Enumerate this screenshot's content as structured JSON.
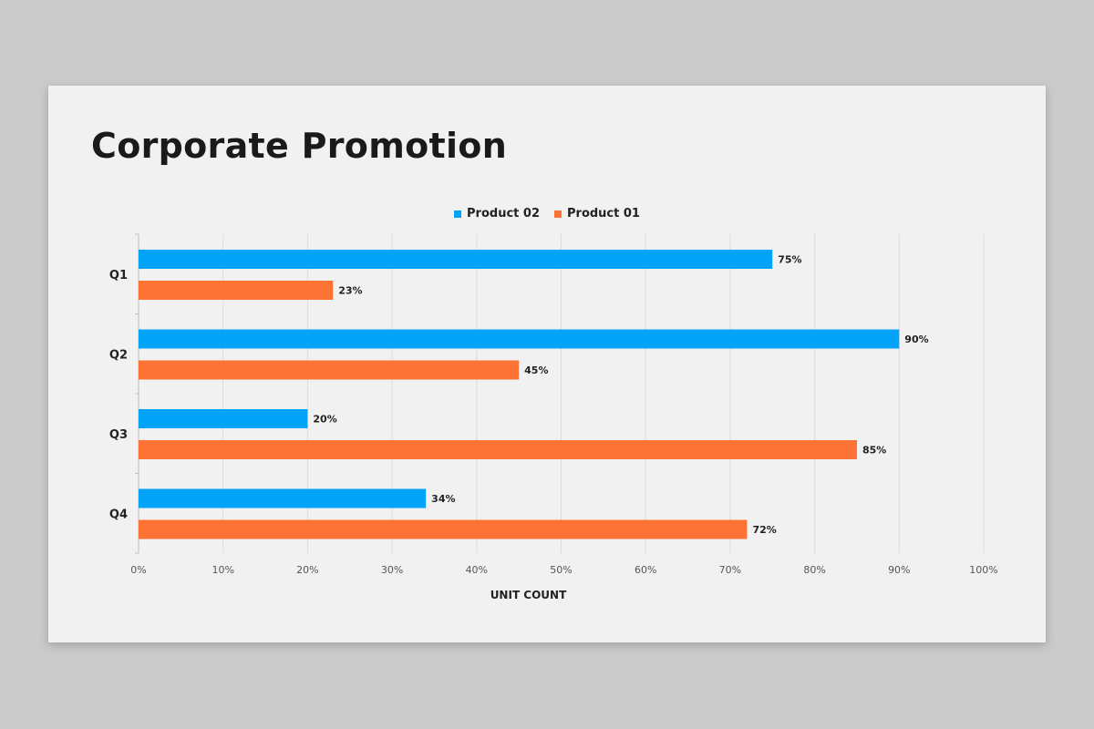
{
  "title": "Corporate Promotion",
  "colors": {
    "background": "#cbcbcb",
    "slide": "#f2f1f1",
    "product_02": "#03a4f7",
    "product_01": "#fd7335"
  },
  "chart_data": {
    "type": "bar",
    "orientation": "horizontal",
    "categories": [
      "Q1",
      "Q2",
      "Q3",
      "Q4"
    ],
    "series": [
      {
        "name": "Product 02",
        "values": [
          75,
          90,
          20,
          34
        ],
        "color": "#03a4f7"
      },
      {
        "name": "Product 01",
        "values": [
          23,
          45,
          85,
          72
        ],
        "color": "#fd7335"
      }
    ],
    "data_labels": {
      "Product 02": [
        "75%",
        "90%",
        "20%",
        "34%"
      ],
      "Product 01": [
        "23%",
        "45%",
        "85%",
        "72%"
      ]
    },
    "x_ticks": [
      "0%",
      "10%",
      "20%",
      "30%",
      "40%",
      "50%",
      "60%",
      "70%",
      "80%",
      "90%",
      "100%"
    ],
    "xlim": [
      0,
      100
    ],
    "xlabel": "UNIT COUNT",
    "ylabel": "",
    "grid": true,
    "legend_position": "top-center"
  }
}
